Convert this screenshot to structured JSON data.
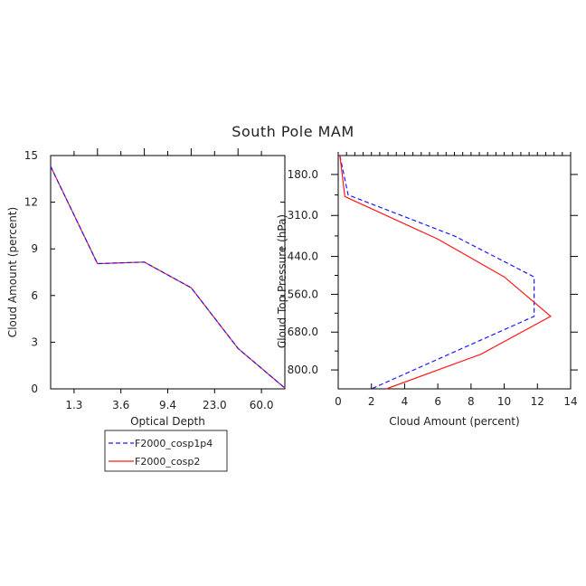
{
  "title": "South Pole MAM",
  "legend": {
    "entries": [
      {
        "label": "F2000_cosp1p4",
        "color": "#1a1aff",
        "dash": "dashed"
      },
      {
        "label": "F2000_cosp2",
        "color": "#ff1a1a",
        "dash": "solid"
      }
    ]
  },
  "chart_data": [
    {
      "type": "line",
      "xlabel": "Optical Depth",
      "ylabel": "Cloud Amount (percent)",
      "x_tick_labels": [
        "1.3",
        "3.6",
        "9.4",
        "23.0",
        "60.0"
      ],
      "x_categories": [
        0,
        1,
        2,
        3,
        4,
        5
      ],
      "ylim": [
        0,
        15
      ],
      "y_ticks": [
        0,
        3,
        6,
        9,
        12,
        15
      ],
      "series": [
        {
          "name": "F2000_cosp1p4",
          "color": "#1a1aff",
          "dash": "dashed",
          "x": [
            0,
            1,
            2,
            3,
            4,
            5
          ],
          "y": [
            14.3,
            8.05,
            8.15,
            6.5,
            2.6,
            0.05
          ]
        },
        {
          "name": "F2000_cosp2",
          "color": "#ff1a1a",
          "dash": "solid",
          "x": [
            0,
            1,
            2,
            3,
            4,
            5
          ],
          "y": [
            14.3,
            8.05,
            8.15,
            6.5,
            2.6,
            0.05
          ]
        }
      ]
    },
    {
      "type": "line",
      "xlabel": "Cloud Amount (percent)",
      "ylabel": "Cloud Top Pressure (hPa)",
      "xlim": [
        0,
        14
      ],
      "x_ticks": [
        0,
        2,
        4,
        6,
        8,
        10,
        12,
        14
      ],
      "ylim": [
        120,
        860
      ],
      "y_inverted": true,
      "y_tick_labels": [
        "180.0",
        "310.0",
        "440.0",
        "560.0",
        "680.0",
        "800.0"
      ],
      "y_ticks": [
        180,
        310,
        440,
        560,
        680,
        800
      ],
      "series": [
        {
          "name": "F2000_cosp1p4",
          "color": "#1a1aff",
          "dash": "dashed",
          "x": [
            0.1,
            0.6,
            7.0,
            11.8,
            11.8,
            2.0
          ],
          "y": [
            120,
            245,
            375,
            505,
            630,
            860
          ]
        },
        {
          "name": "F2000_cosp2",
          "color": "#ff1a1a",
          "dash": "solid",
          "x": [
            0.1,
            0.4,
            6.0,
            10.0,
            12.8,
            8.6,
            2.9
          ],
          "y": [
            120,
            250,
            385,
            505,
            630,
            750,
            860
          ]
        }
      ]
    }
  ]
}
